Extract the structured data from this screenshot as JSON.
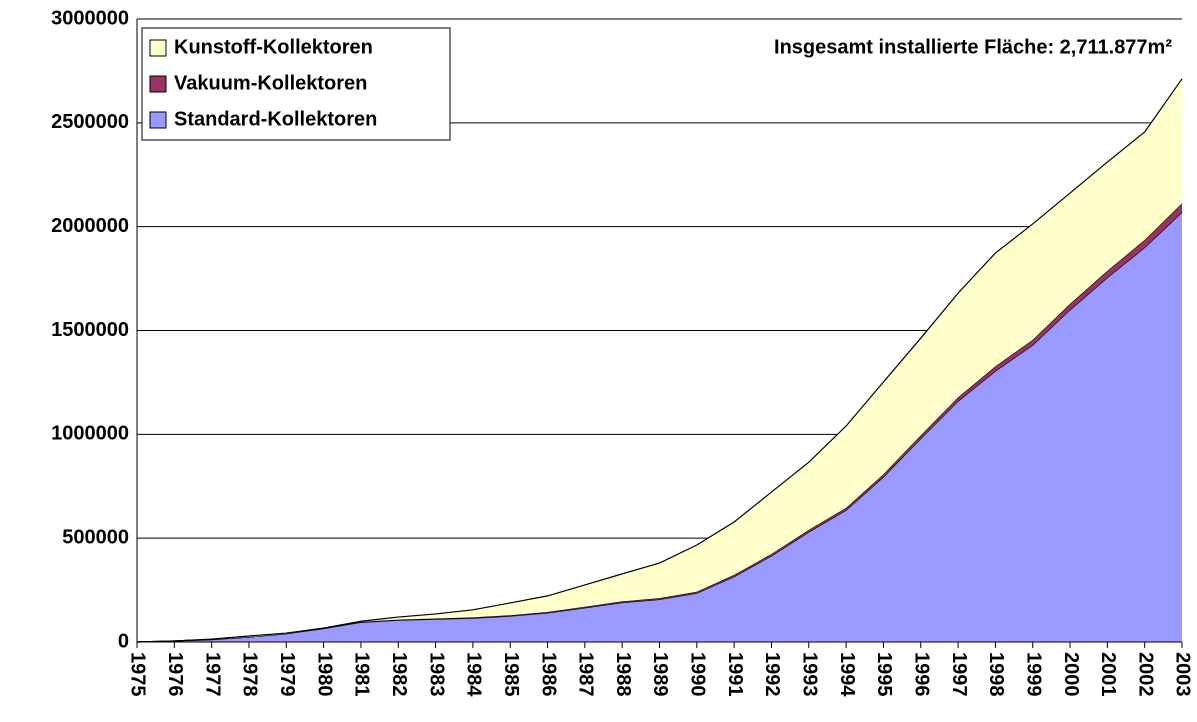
{
  "chart_data": {
    "type": "stacked_area",
    "annotation": "Insgesamt installierte Fläche: 2,711.877m²",
    "categories": [
      "1975",
      "1976",
      "1977",
      "1978",
      "1979",
      "1980",
      "1981",
      "1982",
      "1983",
      "1984",
      "1985",
      "1986",
      "1987",
      "1988",
      "1989",
      "1990",
      "1991",
      "1992",
      "1993",
      "1994",
      "1995",
      "1996",
      "1997",
      "1998",
      "1999",
      "2000",
      "2001",
      "2002",
      "2003"
    ],
    "series": [
      {
        "name": "Standard-Kollektoren",
        "color": "#9999ff",
        "values": [
          0,
          5000,
          12000,
          24000,
          40000,
          65000,
          95000,
          105000,
          110000,
          115000,
          125000,
          140000,
          165000,
          190000,
          205000,
          235000,
          315000,
          415000,
          530000,
          635000,
          795000,
          980000,
          1160000,
          1305000,
          1430000,
          1600000,
          1755000,
          1900000,
          2070000
        ]
      },
      {
        "name": "Vakuum-Kollektoren",
        "color": "#993366",
        "values": [
          0,
          0,
          0,
          0,
          0,
          1000,
          2000,
          2500,
          3000,
          3500,
          4000,
          4500,
          5000,
          5500,
          6000,
          7000,
          8000,
          9000,
          10000,
          11000,
          13000,
          15000,
          18000,
          22000,
          25000,
          28000,
          32000,
          36000,
          42000
        ]
      },
      {
        "name": "Kunstoff-Kollektoren",
        "color": "#ffffcc",
        "values": [
          0,
          0,
          2000,
          5000,
          3000,
          1000,
          3000,
          12500,
          22000,
          36500,
          59000,
          77500,
          105000,
          132500,
          169000,
          225000,
          255000,
          298000,
          326000,
          394000,
          444000,
          468000,
          502000,
          546000,
          558000,
          534000,
          524000,
          520000,
          599877
        ]
      }
    ],
    "ylim": [
      0,
      3000000
    ],
    "yticks": [
      0,
      500000,
      1000000,
      1500000,
      2000000,
      2500000,
      3000000
    ],
    "grid": true,
    "legend": "top-left"
  }
}
